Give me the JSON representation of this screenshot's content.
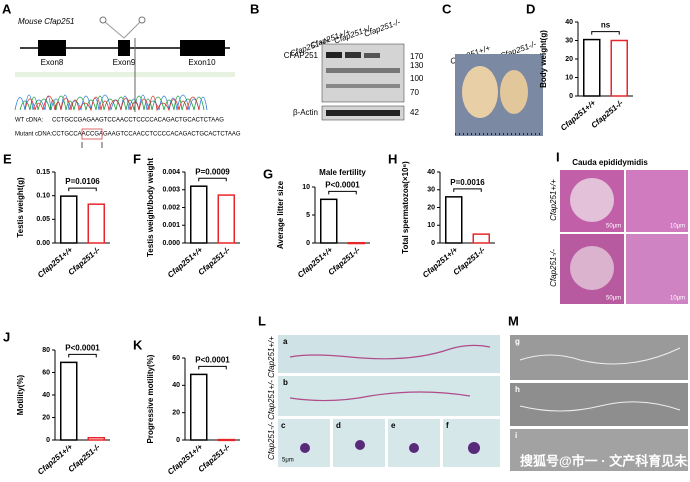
{
  "figure": {
    "a": {
      "letter": "A",
      "title": "Mouse Cfap251",
      "exons": [
        "Exon8",
        "Exon9",
        "Exon10"
      ],
      "wt_label": "WT cDNA:",
      "wt_seq": "CCTGCCGAGAAGTCCAACCTCCCCACAGACTGCACTCTAAG",
      "mut_label": "Mutant cDNA:",
      "mut_seq": "CCTGCCAACCGAGAAGTCCAACCTCCCCACAGACTGCACTCTAAG"
    },
    "b": {
      "letter": "B",
      "lanes": [
        "Cfap251+/+",
        "Cfap251+/+",
        "Cfap251+/-",
        "Cfap251-/-"
      ],
      "proteins": [
        "CFAP251",
        "β-Actin"
      ],
      "markers": [
        "170",
        "130",
        "100",
        "70",
        "42"
      ]
    },
    "c": {
      "letter": "C",
      "labels": [
        "Cfap251+/+",
        "Cfap251-/-"
      ]
    },
    "i": {
      "letter": "I",
      "title": "Cauda epididymidis",
      "rows": [
        "Cfap251+/+",
        "Cfap251-/-"
      ],
      "scales": [
        "50μm",
        "10μm",
        "50μm",
        "10μm"
      ]
    },
    "l": {
      "letter": "L",
      "side_label": "Cfap251-/-  Cfap251+/-  Cfap251+/+",
      "subs": [
        "a",
        "b",
        "c",
        "d",
        "e",
        "f"
      ],
      "scale": "5μm"
    },
    "m": {
      "letter": "M",
      "subs": [
        "g",
        "h",
        "i"
      ]
    },
    "watermark": "搜狐号@市一 · 文产科育见未来"
  },
  "chart_data": [
    {
      "type": "bar",
      "panel": "D",
      "ylabel": "Body weight(g)",
      "categories": [
        "Cfap251+/+",
        "Cfap251-/-"
      ],
      "values": [
        30.5,
        30
      ],
      "colors": [
        "#000000",
        "#e8262a"
      ],
      "ylim": [
        0,
        40
      ],
      "yticks": [
        0,
        10,
        20,
        30,
        40
      ],
      "annotation": "ns"
    },
    {
      "type": "bar",
      "panel": "E",
      "ylabel": "Testis weight(g)",
      "categories": [
        "Cfap251+/+",
        "Cfap251-/-"
      ],
      "values": [
        0.099,
        0.082
      ],
      "colors": [
        "#000000",
        "#e8262a"
      ],
      "ylim": [
        0,
        0.15
      ],
      "yticks": [
        {
          "value": 0,
          "label": "0.00"
        },
        0.05,
        {
          "value": 0.1,
          "label": "0.10"
        },
        0.15
      ],
      "annotation": "P=0.0106"
    },
    {
      "type": "bar",
      "panel": "F",
      "ylabel": "Testis weight/body weight",
      "categories": [
        "Cfap251+/+",
        "Cfap251-/-"
      ],
      "values": [
        0.0032,
        0.0027
      ],
      "colors": [
        "#000000",
        "#e8262a"
      ],
      "ylim": [
        0,
        0.004
      ],
      "yticks": [
        {
          "value": 0,
          "label": "0.000"
        },
        0.001,
        0.002,
        0.003,
        0.004
      ],
      "annotation": "P=0.0009"
    },
    {
      "type": "bar",
      "panel": "G",
      "title": "Male fertility",
      "ylabel": "Average litter size",
      "categories": [
        "Cfap251+/+",
        "Cfap251-/-"
      ],
      "values": [
        7.8,
        0.05
      ],
      "colors": [
        "#000000",
        "#e8262a"
      ],
      "ylim": [
        0,
        10
      ],
      "yticks": [
        0,
        5,
        10
      ],
      "annotation": "P<0.0001"
    },
    {
      "type": "bar",
      "panel": "H",
      "ylabel": "Total spermatozoa(×10⁶)",
      "categories": [
        "Cfap251+/+",
        "Cfap251-/-"
      ],
      "values": [
        26,
        5
      ],
      "colors": [
        "#000000",
        "#e8262a"
      ],
      "ylim": [
        0,
        40
      ],
      "yticks": [
        0,
        10,
        20,
        30,
        40
      ],
      "annotation": "P=0.0016"
    },
    {
      "type": "bar",
      "panel": "J",
      "ylabel": "Motility(%)",
      "categories": [
        "Cfap251+/+",
        "Cfap251-/-"
      ],
      "values": [
        69,
        2
      ],
      "colors": [
        "#000000",
        "#e8262a"
      ],
      "ylim": [
        0,
        80
      ],
      "yticks": [
        0,
        20,
        40,
        60,
        80
      ],
      "annotation": "P<0.0001"
    },
    {
      "type": "bar",
      "panel": "K",
      "ylabel": "Progressive motility(%)",
      "categories": [
        "Cfap251+/+",
        "Cfap251-/-"
      ],
      "values": [
        48,
        0.3
      ],
      "colors": [
        "#000000",
        "#e8262a"
      ],
      "ylim": [
        0,
        60
      ],
      "yticks": [
        0,
        20,
        40,
        60
      ],
      "annotation": "P<0.0001"
    }
  ]
}
